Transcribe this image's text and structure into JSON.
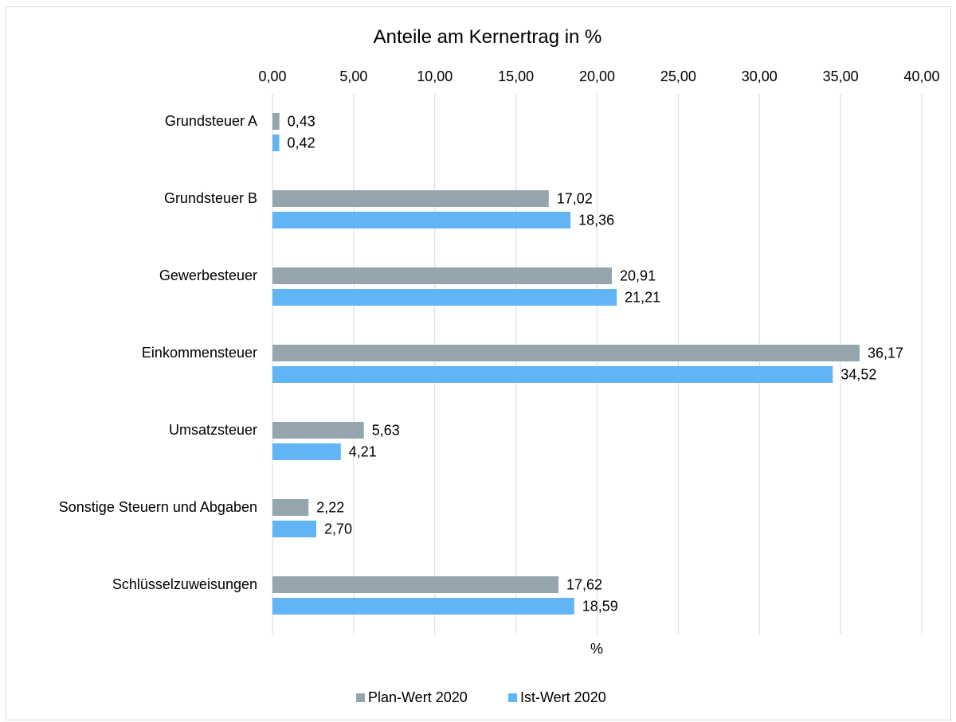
{
  "chart_data": {
    "type": "bar",
    "orientation": "horizontal",
    "title": "Anteile am Kernertrag in %",
    "xlabel": "%",
    "ylabel": "",
    "xlim": [
      0,
      40
    ],
    "x_axis_position": "top",
    "x_ticks": [
      "0,00",
      "5,00",
      "10,00",
      "15,00",
      "20,00",
      "25,00",
      "30,00",
      "35,00",
      "40,00"
    ],
    "grid": true,
    "legend_position": "bottom",
    "categories": [
      "Grundsteuer A",
      "Grundsteuer B",
      "Gewerbesteuer",
      "Einkommensteuer",
      "Umsatzsteuer",
      "Sonstige Steuern und Abgaben",
      "Schlüsselzuweisungen"
    ],
    "series": [
      {
        "name": "Plan-Wert 2020",
        "color": "#95a5ad",
        "values": [
          0.43,
          17.02,
          20.91,
          36.17,
          5.63,
          2.22,
          17.62
        ],
        "labels": [
          "0,43",
          "17,02",
          "20,91",
          "36,17",
          "5,63",
          "2,22",
          "17,62"
        ]
      },
      {
        "name": "Ist-Wert 2020",
        "color": "#62b5f4",
        "values": [
          0.42,
          18.36,
          21.21,
          34.52,
          4.21,
          2.7,
          18.59
        ],
        "labels": [
          "0,42",
          "18,36",
          "21,21",
          "34,52",
          "4,21",
          "2,70",
          "18,59"
        ]
      }
    ]
  }
}
